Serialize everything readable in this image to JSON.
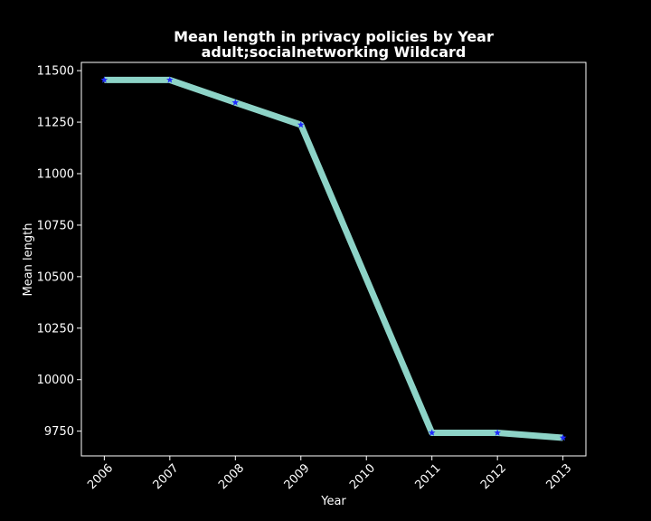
{
  "chart_data": {
    "type": "line",
    "title": "Mean length in privacy policies by Year",
    "subtitle": "adult;socialnetworking Wildcard",
    "xlabel": "Year",
    "ylabel": "Mean length",
    "x": [
      2006,
      2007,
      2008,
      2009,
      2011,
      2012,
      2013
    ],
    "x_ticks": [
      "2006",
      "2007",
      "2008",
      "2009",
      "2010",
      "2011",
      "2012",
      "2013"
    ],
    "y_ticks": [
      "9750",
      "10000",
      "10250",
      "10500",
      "10750",
      "11000",
      "11250",
      "11500"
    ],
    "xlim": [
      2005.65,
      2013.35
    ],
    "ylim": [
      9630,
      11540
    ],
    "grid": false,
    "series": [
      {
        "values": [
          11455,
          11455,
          11345,
          11237,
          9742,
          9742,
          9718
        ],
        "line_color": "#8dd3c7",
        "marker_color": "#1f2bff",
        "marker": "star"
      }
    ]
  }
}
